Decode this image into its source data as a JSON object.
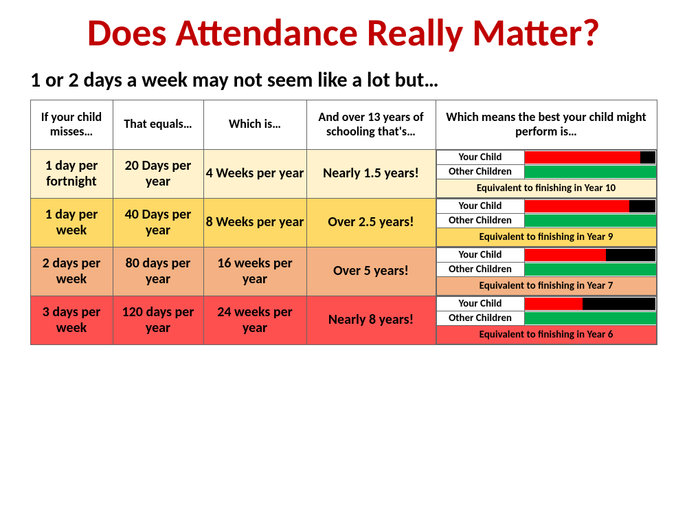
{
  "title": "Does Attendance Really Matter?",
  "subtitle": "1 or 2 days a week may not seem like a lot but…",
  "headers": [
    "If your child misses…",
    "That equals…",
    "Which is…",
    "And over 13 years of schooling that's…",
    "Which means the best your child might perform is…"
  ],
  "perf_labels": {
    "your_child": "Your Child",
    "other_children": "Other Children"
  },
  "colors": {
    "title": "#c00000",
    "bar_red": "#ff0000",
    "bar_black": "#000000",
    "bar_green": "#00b050",
    "border": "#666666"
  },
  "rows": [
    {
      "bg": "#fff2cc",
      "misses": "1 day per fortnight",
      "equals": "20 Days per year",
      "which_is": "4 Weeks per year",
      "over_13": "Nearly 1.5 years!",
      "your_child_pct": 88,
      "other_children_pct": 100,
      "summary": "Equivalent to finishing in Year 10",
      "summary_bg": "#fff2cc"
    },
    {
      "bg": "#ffd966",
      "misses": "1 day per week",
      "equals": "40 Days per year",
      "which_is": "8 Weeks per year",
      "over_13": "Over 2.5 years!",
      "your_child_pct": 80,
      "other_children_pct": 100,
      "summary": "Equivalent to finishing in Year 9",
      "summary_bg": "#ffd966"
    },
    {
      "bg": "#f4b183",
      "misses": "2 days per week",
      "equals": "80 days per year",
      "which_is": "16 weeks per year",
      "over_13": "Over 5 years!",
      "your_child_pct": 62,
      "other_children_pct": 100,
      "summary": "Equivalent to finishing in Year 7",
      "summary_bg": "#f4b183"
    },
    {
      "bg": "#ff5050",
      "misses": "3 days per week",
      "equals": "120 days per year",
      "which_is": "24 weeks per year",
      "over_13": "Nearly 8 years!",
      "your_child_pct": 44,
      "other_children_pct": 100,
      "summary": "Equivalent to finishing in Year 6",
      "summary_bg": "#ff5050"
    }
  ]
}
